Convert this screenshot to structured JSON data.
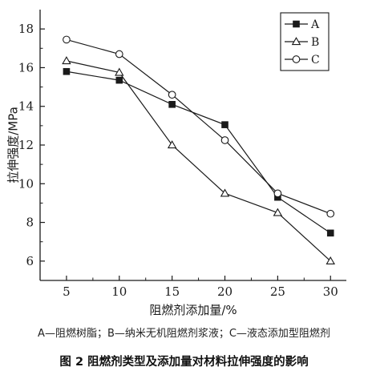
{
  "chart_data": {
    "type": "line",
    "xlabel": "阻燃剂添加量/%",
    "ylabel": "拉伸强度/MPa",
    "x": [
      5,
      10,
      15,
      20,
      25,
      30
    ],
    "xlim": [
      2.5,
      31.5
    ],
    "ylim": [
      5,
      19
    ],
    "xticks": [
      "5",
      "10",
      "15",
      "20",
      "25",
      "30"
    ],
    "yticks": [
      "6",
      "8",
      "10",
      "12",
      "14",
      "16",
      "18"
    ],
    "grid": false,
    "legend_position": "top-right",
    "series": [
      {
        "name": "A",
        "marker": "filled-square",
        "values": [
          15.8,
          15.35,
          14.1,
          13.05,
          9.3,
          7.45
        ]
      },
      {
        "name": "B",
        "marker": "open-triangle",
        "values": [
          16.35,
          15.75,
          12.0,
          9.5,
          8.5,
          6.0
        ]
      },
      {
        "name": "C",
        "marker": "open-circle",
        "values": [
          17.45,
          16.7,
          14.6,
          12.25,
          9.5,
          8.45
        ]
      }
    ]
  },
  "note": "A—阻燃树脂；B—纳米无机阻燃剂浆液；C—液态添加型阻燃剂",
  "caption": "图 2   阻燃剂类型及添加量对材料拉伸强度的影响"
}
